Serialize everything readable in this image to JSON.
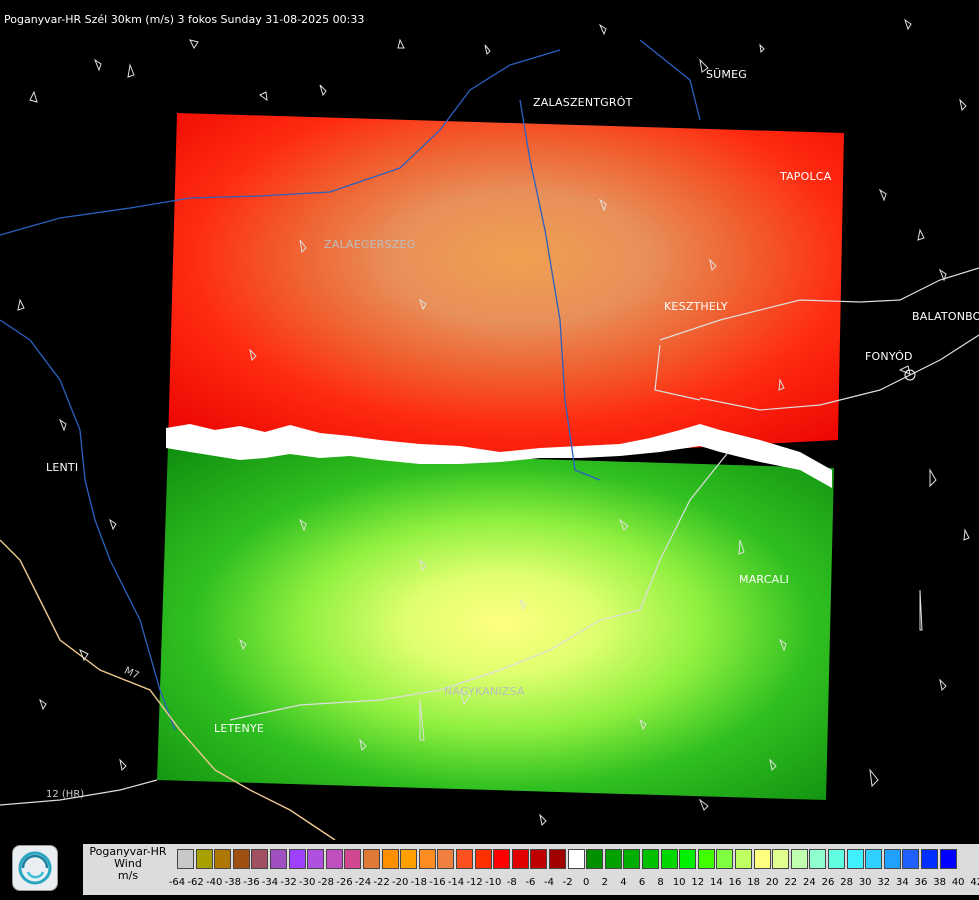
{
  "header": {
    "title": "Poganyvar-HR Szél 30km (m/s) 3 fokos Sunday 31-08-2025 00:33"
  },
  "towns": {
    "sumeg": "SÜMEG",
    "zalaszentgrot": "ZALASZENTGRÓT",
    "tapolca": "TAPOLCA",
    "zalaegerszeg": "ZALAEGERSZEG",
    "keszthely": "KESZTHELY",
    "balatonbo": "BALATONBO",
    "fonyod": "FONYÓD",
    "lenti": "LENTI",
    "marcali": "MARCALI",
    "nagykanizsa": "NAGYKANIZSA",
    "letenye": "LETENYE"
  },
  "roads": {
    "m7": "M7",
    "r12": "12 (HR)"
  },
  "legend": {
    "line1": "Poganyvar-HR",
    "line2": "Wind",
    "line3": "m/s",
    "ticks": [
      "-64",
      "-62",
      "-40",
      "-38",
      "-36",
      "-34",
      "-32",
      "-30",
      "-28",
      "-26",
      "-24",
      "-22",
      "-20",
      "-18",
      "-16",
      "-14",
      "-12",
      "-10",
      "-8",
      "-6",
      "-4",
      "-2",
      "0",
      "2",
      "4",
      "6",
      "8",
      "10",
      "12",
      "14",
      "16",
      "18",
      "20",
      "22",
      "24",
      "26",
      "28",
      "30",
      "32",
      "34",
      "36",
      "38",
      "40",
      "42"
    ],
    "colors": [
      "#c8c8c8",
      "#a8a000",
      "#b07800",
      "#a05010",
      "#a05060",
      "#a050c0",
      "#a040ff",
      "#b050e0",
      "#c050c0",
      "#d04890",
      "#e07838",
      "#ff9000",
      "#ffa000",
      "#ff8c20",
      "#f08040",
      "#ff5020",
      "#ff3000",
      "#ff0000",
      "#e00000",
      "#c00000",
      "#a00000",
      "#ffffff",
      "#009000",
      "#00a000",
      "#00b000",
      "#00c000",
      "#00d800",
      "#00f000",
      "#40ff00",
      "#80ff40",
      "#c0ff60",
      "#ffff80",
      "#e0ff90",
      "#c0ffb0",
      "#90ffd0",
      "#60ffe0",
      "#40f0ff",
      "#30d0ff",
      "#20a0ff",
      "#2060ff",
      "#0030ff",
      "#0000ff"
    ]
  }
}
